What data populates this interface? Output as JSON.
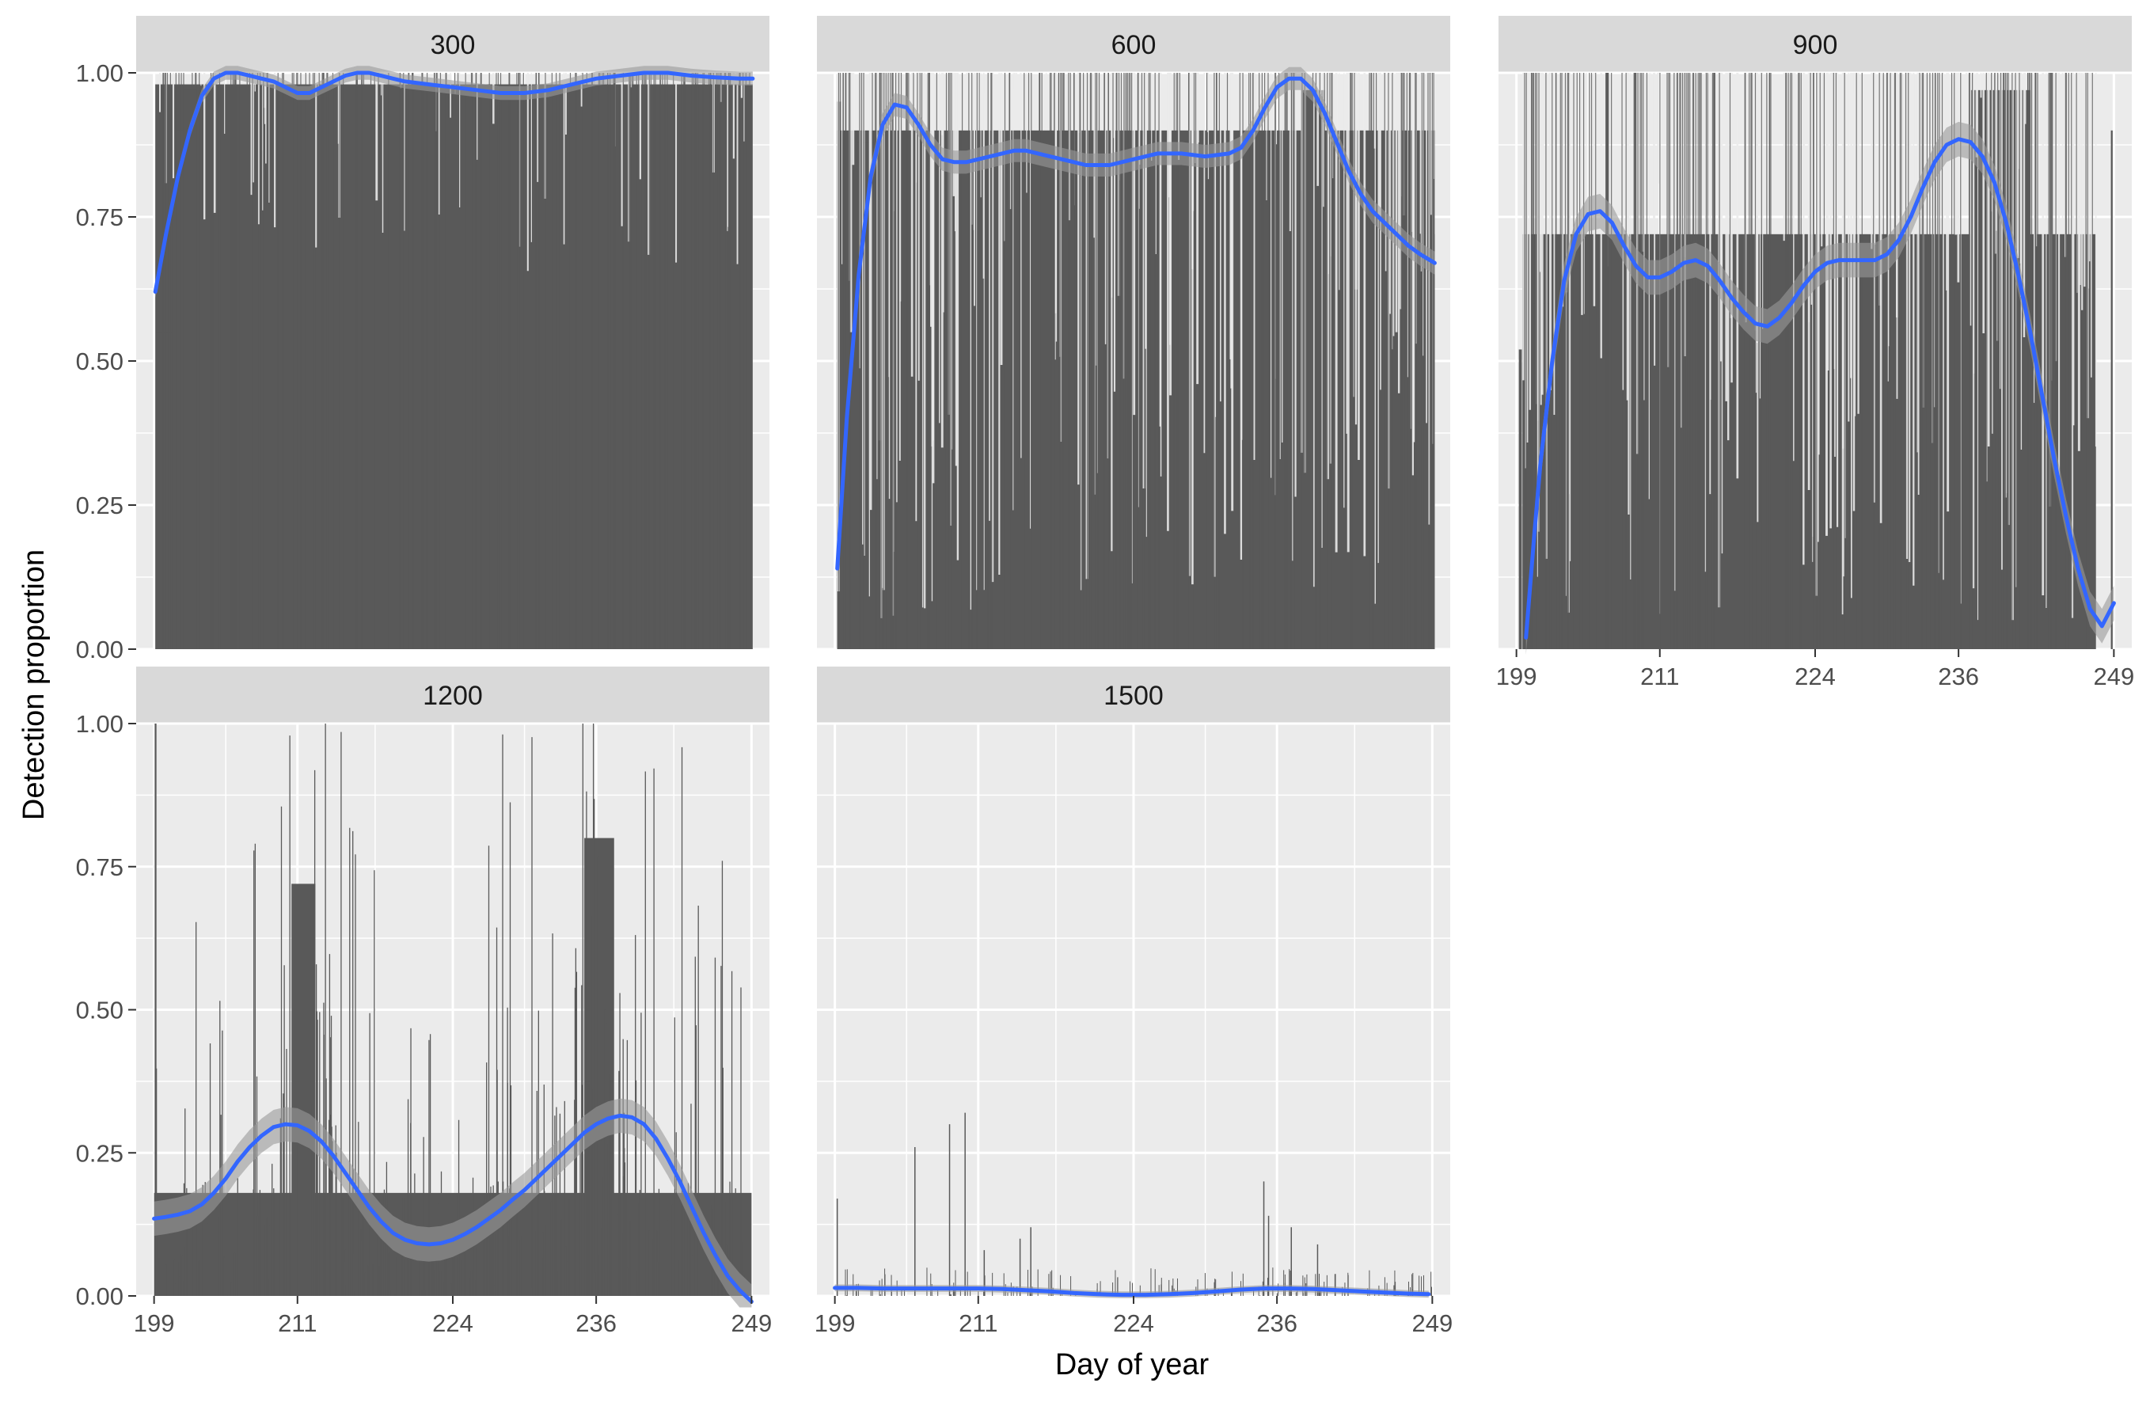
{
  "chart_data": {
    "type": "bar",
    "title": "",
    "xlabel": "Day of year",
    "ylabel": "Detection proportion",
    "xlim": [
      197.5,
      250.5
    ],
    "ylim": [
      0,
      1.0
    ],
    "x_ticks": [
      199,
      211,
      224,
      236,
      249
    ],
    "y_ticks": [
      0.0,
      0.25,
      0.5,
      0.75,
      1.0
    ],
    "y_tick_labels": [
      "0.00",
      "0.25",
      "0.50",
      "0.75",
      "1.00"
    ],
    "grid": true,
    "bar_color": "#595959",
    "smooth_color": "#3366FF",
    "ribbon_color": "#999999",
    "panel_background": "#EBEBEB",
    "strip_background": "#D9D9D9",
    "panels": [
      {
        "label": "300",
        "bar_start": 199.1,
        "bar_end": 249.1,
        "base_level": 0.98,
        "bars": [
          {
            "start": 199.2,
            "end": 200.5,
            "level": 0.55
          },
          {
            "start": 200.5,
            "end": 201.5,
            "level": 0.9
          },
          {
            "start": 201.5,
            "end": 202.5,
            "level": 0.97
          }
        ],
        "smooth": {
          "x": [
            199.1,
            200,
            201,
            202,
            203,
            204,
            205,
            206,
            207,
            208,
            209,
            210,
            211,
            212,
            213,
            214,
            215,
            216,
            217,
            218,
            219,
            220,
            222,
            224,
            226,
            228,
            230,
            232,
            234,
            236,
            238,
            240,
            242,
            244,
            246,
            248,
            249.1
          ],
          "y": [
            0.62,
            0.72,
            0.82,
            0.9,
            0.96,
            0.99,
            1.0,
            1.0,
            0.995,
            0.99,
            0.985,
            0.975,
            0.965,
            0.965,
            0.975,
            0.985,
            0.995,
            1.0,
            1.0,
            0.995,
            0.99,
            0.985,
            0.98,
            0.975,
            0.97,
            0.965,
            0.965,
            0.97,
            0.98,
            0.99,
            0.995,
            1.0,
            1.0,
            0.995,
            0.992,
            0.99,
            0.99
          ],
          "se": 0.012
        }
      },
      {
        "label": "600",
        "bar_start": 199.2,
        "bar_end": 249.2,
        "base_level": 0.9,
        "bars": [
          {
            "start": 199.2,
            "end": 199.5,
            "level": 0.95
          },
          {
            "start": 199.5,
            "end": 200.8,
            "level": 0.0
          },
          {
            "start": 200.8,
            "end": 202.5,
            "level": 0.88
          },
          {
            "start": 238.0,
            "end": 240.0,
            "level": 0.97
          },
          {
            "start": 247.5,
            "end": 249.2,
            "level": 0.72
          }
        ],
        "smooth": {
          "x": [
            199.2,
            200,
            201,
            202,
            203,
            204,
            205,
            206,
            207,
            208,
            209,
            210,
            211,
            212,
            213,
            214,
            215,
            216,
            217,
            218,
            219,
            220,
            222,
            224,
            226,
            228,
            230,
            232,
            233,
            234,
            235,
            236,
            237,
            238,
            239,
            240,
            241,
            242,
            243,
            244,
            245,
            246,
            247,
            248,
            249.2
          ],
          "y": [
            0.14,
            0.4,
            0.65,
            0.82,
            0.91,
            0.945,
            0.94,
            0.91,
            0.875,
            0.85,
            0.845,
            0.845,
            0.85,
            0.855,
            0.86,
            0.865,
            0.865,
            0.86,
            0.855,
            0.85,
            0.845,
            0.84,
            0.84,
            0.85,
            0.86,
            0.86,
            0.855,
            0.86,
            0.87,
            0.9,
            0.94,
            0.975,
            0.99,
            0.99,
            0.97,
            0.93,
            0.88,
            0.83,
            0.79,
            0.76,
            0.74,
            0.72,
            0.7,
            0.685,
            0.67
          ],
          "se": 0.02
        }
      },
      {
        "label": "900",
        "bar_start": 199.5,
        "bar_end": 247.5,
        "base_level": 0.72,
        "bars": [
          {
            "start": 199.2,
            "end": 199.45,
            "level": 0.52
          },
          {
            "start": 199.45,
            "end": 200.2,
            "level": 0.0
          },
          {
            "start": 200.2,
            "end": 201.8,
            "level": 0.6
          },
          {
            "start": 237.0,
            "end": 242.0,
            "level": 0.97
          },
          {
            "start": 244.5,
            "end": 247.2,
            "level": 0.7
          },
          {
            "start": 247.5,
            "end": 248.7,
            "level": 0.0
          },
          {
            "start": 248.75,
            "end": 248.9,
            "level": 0.9
          }
        ],
        "smooth": {
          "x": [
            199.8,
            200.5,
            201,
            202,
            203,
            204,
            205,
            206,
            207,
            208,
            209,
            210,
            211,
            212,
            213,
            214,
            215,
            216,
            217,
            218,
            219,
            220,
            221,
            222,
            223,
            224,
            225,
            226,
            227,
            228,
            229,
            230,
            231,
            232,
            233,
            234,
            235,
            236,
            237,
            238,
            239,
            240,
            241,
            242,
            243,
            244,
            245,
            246,
            247,
            248,
            249
          ],
          "y": [
            0.02,
            0.2,
            0.32,
            0.5,
            0.64,
            0.72,
            0.755,
            0.76,
            0.74,
            0.7,
            0.665,
            0.645,
            0.645,
            0.655,
            0.67,
            0.675,
            0.665,
            0.64,
            0.61,
            0.585,
            0.565,
            0.56,
            0.575,
            0.6,
            0.63,
            0.655,
            0.67,
            0.675,
            0.675,
            0.675,
            0.675,
            0.685,
            0.71,
            0.75,
            0.8,
            0.845,
            0.875,
            0.885,
            0.88,
            0.855,
            0.81,
            0.74,
            0.65,
            0.55,
            0.44,
            0.33,
            0.23,
            0.14,
            0.07,
            0.04,
            0.08
          ],
          "se": 0.03
        }
      },
      {
        "label": "1200",
        "bar_start": 199.0,
        "bar_end": 249.0,
        "base_level": 0.18,
        "bars": [
          {
            "start": 199.05,
            "end": 199.2,
            "level": 1.0
          },
          {
            "start": 210.5,
            "end": 212.5,
            "level": 0.72
          },
          {
            "start": 235.0,
            "end": 237.5,
            "level": 0.8
          }
        ],
        "smooth": {
          "x": [
            199,
            200,
            201,
            202,
            203,
            204,
            205,
            206,
            207,
            208,
            209,
            210,
            211,
            212,
            213,
            214,
            215,
            216,
            217,
            218,
            219,
            220,
            221,
            222,
            223,
            224,
            225,
            226,
            227,
            228,
            229,
            230,
            231,
            232,
            233,
            234,
            235,
            236,
            237,
            238,
            239,
            240,
            241,
            242,
            243,
            244,
            245,
            246,
            247,
            248,
            249
          ],
          "y": [
            0.135,
            0.138,
            0.142,
            0.148,
            0.16,
            0.18,
            0.205,
            0.235,
            0.26,
            0.28,
            0.295,
            0.3,
            0.298,
            0.288,
            0.27,
            0.245,
            0.215,
            0.185,
            0.155,
            0.13,
            0.11,
            0.098,
            0.092,
            0.09,
            0.092,
            0.098,
            0.108,
            0.12,
            0.135,
            0.15,
            0.168,
            0.185,
            0.205,
            0.225,
            0.245,
            0.265,
            0.285,
            0.3,
            0.31,
            0.315,
            0.312,
            0.3,
            0.275,
            0.24,
            0.2,
            0.155,
            0.11,
            0.07,
            0.035,
            0.01,
            -0.01
          ],
          "se": 0.03
        }
      },
      {
        "label": "1500",
        "bar_start": 199.0,
        "bar_end": 249.0,
        "base_level": 0.01,
        "bars": [],
        "spikes": [
          {
            "x": 199.2,
            "level": 0.17
          },
          {
            "x": 205.7,
            "level": 0.26
          },
          {
            "x": 208.6,
            "level": 0.3
          },
          {
            "x": 209.9,
            "level": 0.32
          },
          {
            "x": 211.5,
            "level": 0.08
          },
          {
            "x": 214.5,
            "level": 0.1
          },
          {
            "x": 215.4,
            "level": 0.12
          },
          {
            "x": 234.9,
            "level": 0.2
          },
          {
            "x": 235.3,
            "level": 0.14
          },
          {
            "x": 237.2,
            "level": 0.12
          },
          {
            "x": 239.4,
            "level": 0.09
          }
        ],
        "smooth": {
          "x": [
            199,
            201,
            203,
            205,
            207,
            209,
            211,
            213,
            215,
            217,
            219,
            221,
            223,
            225,
            227,
            229,
            231,
            233,
            235,
            237,
            239,
            241,
            243,
            245,
            247,
            248.7
          ],
          "y": [
            0.014,
            0.014,
            0.013,
            0.013,
            0.013,
            0.013,
            0.013,
            0.012,
            0.01,
            0.008,
            0.005,
            0.003,
            0.002,
            0.002,
            0.003,
            0.005,
            0.008,
            0.011,
            0.013,
            0.013,
            0.012,
            0.01,
            0.008,
            0.006,
            0.004,
            0.003
          ],
          "se": 0.006
        }
      }
    ]
  }
}
